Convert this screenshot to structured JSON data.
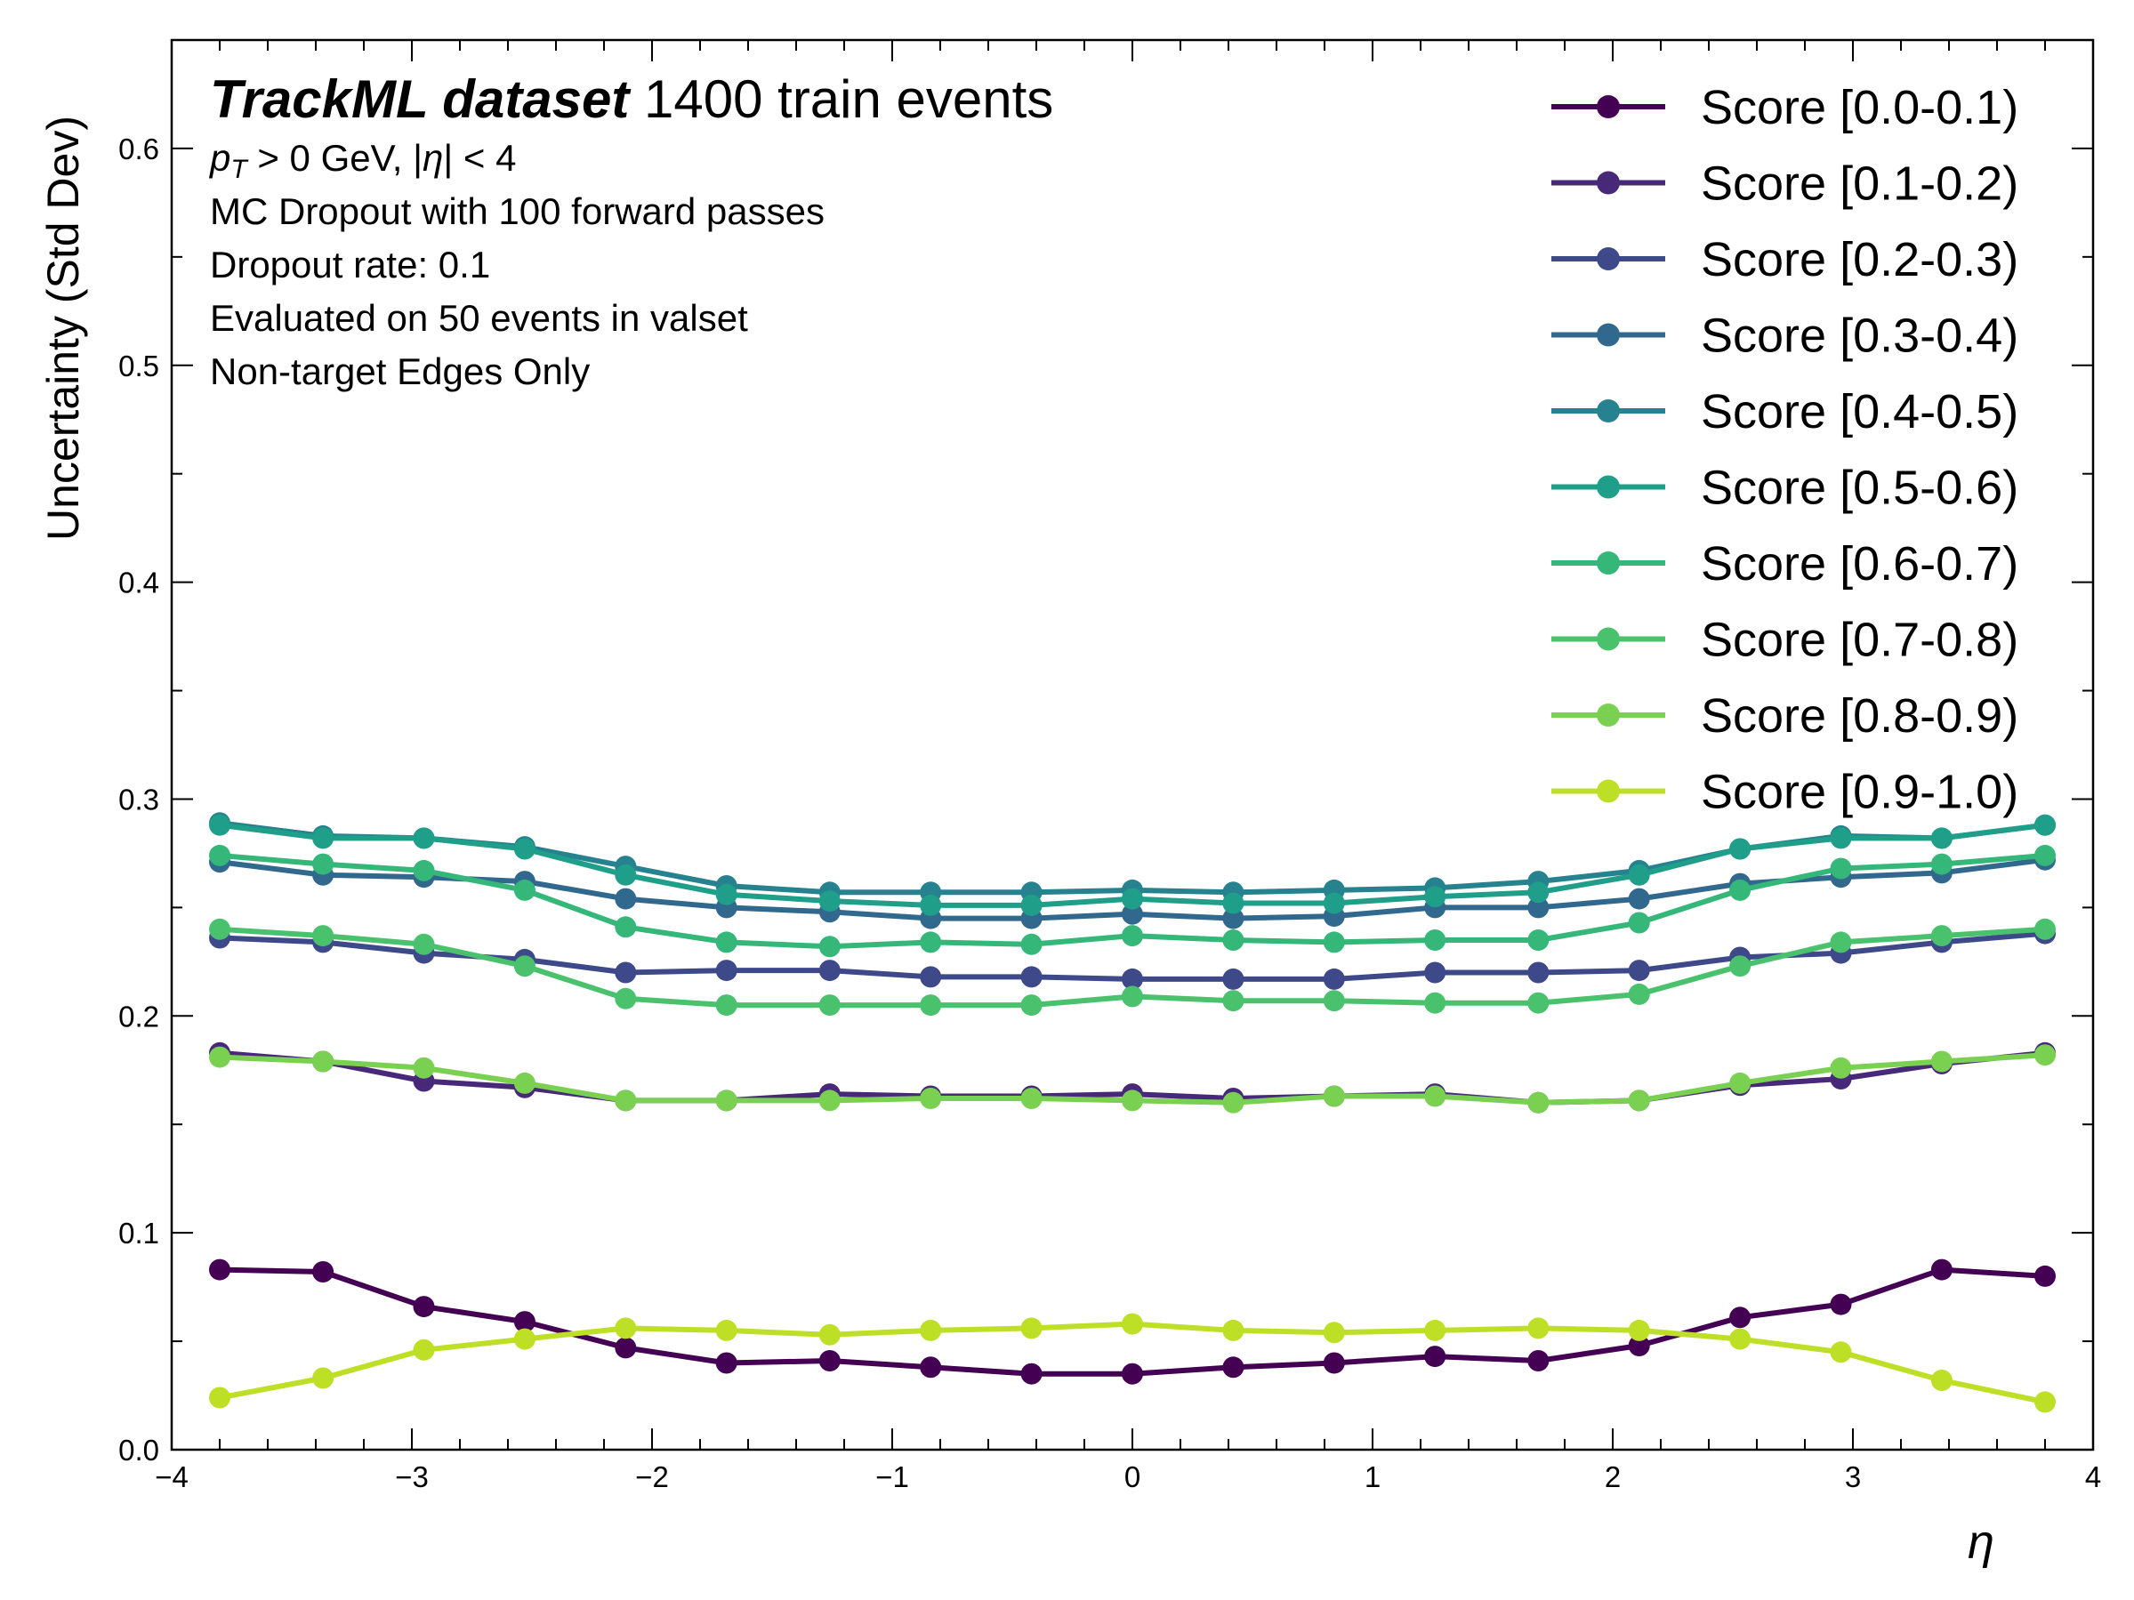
{
  "chart_data": {
    "type": "line",
    "title_bold": "TrackML dataset",
    "title_rest": " 1400 train events",
    "annotations": {
      "kinematic": {
        "p": "p",
        "sub": "T",
        "rest": " > 0 GeV, |",
        "eta": "η",
        "tail": "| < 4"
      },
      "lines": [
        "MC Dropout with 100 forward passes",
        "Dropout rate: 0.1",
        "Evaluated on 50 events in valset",
        "Non-target Edges Only"
      ]
    },
    "xlabel": "η",
    "ylabel": "Uncertainty (Std Dev)",
    "xlim": [
      -4,
      4
    ],
    "ylim": [
      0,
      0.65
    ],
    "xticks": [
      -4,
      -3,
      -2,
      -1,
      0,
      1,
      2,
      3,
      4
    ],
    "xtick_labels": [
      "−4",
      "−3",
      "−2",
      "−1",
      "0",
      "1",
      "2",
      "3",
      "4"
    ],
    "yticks": [
      0.0,
      0.1,
      0.2,
      0.3,
      0.4,
      0.5,
      0.6
    ],
    "ytick_labels": [
      "0.0",
      "0.1",
      "0.2",
      "0.3",
      "0.4",
      "0.5",
      "0.6"
    ],
    "grid": false,
    "legend_position": "top-right",
    "x": [
      -3.8,
      -3.37,
      -2.95,
      -2.53,
      -2.11,
      -1.69,
      -1.26,
      -0.84,
      -0.42,
      0.0,
      0.42,
      0.84,
      1.26,
      1.69,
      2.11,
      2.53,
      2.95,
      3.37,
      3.8
    ],
    "series": [
      {
        "name": "Score [0.0-0.1)",
        "color": "#440154",
        "values": [
          0.083,
          0.082,
          0.066,
          0.059,
          0.047,
          0.04,
          0.041,
          0.038,
          0.035,
          0.035,
          0.038,
          0.04,
          0.043,
          0.041,
          0.048,
          0.061,
          0.067,
          0.083,
          0.08
        ]
      },
      {
        "name": "Score [0.1-0.2)",
        "color": "#482878",
        "values": [
          0.183,
          0.179,
          0.17,
          0.167,
          0.161,
          0.161,
          0.164,
          0.163,
          0.163,
          0.164,
          0.162,
          0.163,
          0.164,
          0.16,
          0.161,
          0.168,
          0.171,
          0.178,
          0.183
        ]
      },
      {
        "name": "Score [0.2-0.3)",
        "color": "#3e4989",
        "values": [
          0.236,
          0.234,
          0.229,
          0.226,
          0.22,
          0.221,
          0.221,
          0.218,
          0.218,
          0.217,
          0.217,
          0.217,
          0.22,
          0.22,
          0.221,
          0.227,
          0.229,
          0.234,
          0.238
        ]
      },
      {
        "name": "Score [0.3-0.4)",
        "color": "#31688e",
        "values": [
          0.271,
          0.265,
          0.264,
          0.262,
          0.254,
          0.25,
          0.248,
          0.245,
          0.245,
          0.247,
          0.245,
          0.246,
          0.25,
          0.25,
          0.254,
          0.261,
          0.264,
          0.266,
          0.272
        ]
      },
      {
        "name": "Score [0.4-0.5)",
        "color": "#26828e",
        "values": [
          0.289,
          0.283,
          0.282,
          0.278,
          0.269,
          0.26,
          0.257,
          0.257,
          0.257,
          0.258,
          0.257,
          0.258,
          0.259,
          0.262,
          0.267,
          0.277,
          0.283,
          0.282,
          0.288
        ]
      },
      {
        "name": "Score [0.5-0.6)",
        "color": "#1f9e89",
        "values": [
          0.288,
          0.282,
          0.282,
          0.277,
          0.265,
          0.256,
          0.253,
          0.251,
          0.251,
          0.254,
          0.252,
          0.252,
          0.255,
          0.257,
          0.265,
          0.277,
          0.282,
          0.282,
          0.288
        ]
      },
      {
        "name": "Score [0.6-0.7)",
        "color": "#35b779",
        "values": [
          0.274,
          0.27,
          0.267,
          0.258,
          0.241,
          0.234,
          0.232,
          0.234,
          0.233,
          0.237,
          0.235,
          0.234,
          0.235,
          0.235,
          0.243,
          0.258,
          0.268,
          0.27,
          0.274
        ]
      },
      {
        "name": "Score [0.7-0.8)",
        "color": "#4ac16d",
        "values": [
          0.24,
          0.237,
          0.233,
          0.223,
          0.208,
          0.205,
          0.205,
          0.205,
          0.205,
          0.209,
          0.207,
          0.207,
          0.206,
          0.206,
          0.21,
          0.223,
          0.234,
          0.237,
          0.24
        ]
      },
      {
        "name": "Score [0.8-0.9)",
        "color": "#7ad151",
        "values": [
          0.181,
          0.179,
          0.176,
          0.169,
          0.161,
          0.161,
          0.161,
          0.162,
          0.162,
          0.161,
          0.16,
          0.163,
          0.163,
          0.16,
          0.161,
          0.169,
          0.176,
          0.179,
          0.182
        ]
      },
      {
        "name": "Score [0.9-1.0)",
        "color": "#bddf26",
        "values": [
          0.024,
          0.033,
          0.046,
          0.051,
          0.056,
          0.055,
          0.053,
          0.055,
          0.056,
          0.058,
          0.055,
          0.054,
          0.055,
          0.056,
          0.055,
          0.051,
          0.045,
          0.032,
          0.022
        ]
      }
    ]
  }
}
